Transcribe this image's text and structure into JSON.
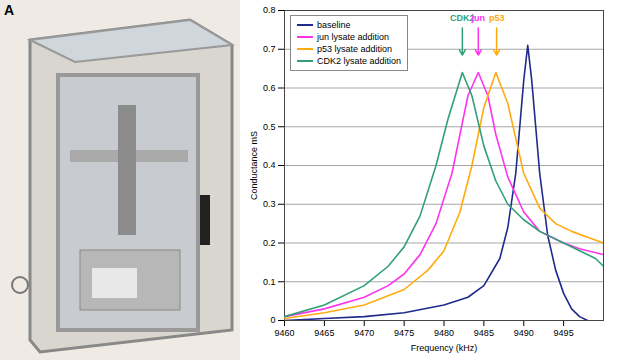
{
  "panel_label": "A",
  "chart_data": {
    "type": "line",
    "xlabel": "Frequency (kHz)",
    "ylabel": "Conductance mS",
    "xlim": [
      9460,
      9500
    ],
    "xticks": [
      9460,
      9465,
      9470,
      9475,
      9480,
      9485,
      9490,
      9495
    ],
    "ylim": [
      0,
      0.8
    ],
    "yticks": [
      0,
      0.1,
      0.2,
      0.3,
      0.4,
      0.5,
      0.6,
      0.7,
      0.8
    ],
    "grid": true,
    "legend": "top-left",
    "series": [
      {
        "name": "baseline",
        "color": "#1f2a8c",
        "x": [
          9460,
          9465,
          9470,
          9475,
          9480,
          9483,
          9485,
          9487,
          9488,
          9489,
          9490,
          9490.5,
          9491,
          9492,
          9493,
          9494,
          9495,
          9496,
          9497,
          9498
        ],
        "values": [
          0.0,
          0.005,
          0.01,
          0.02,
          0.04,
          0.06,
          0.09,
          0.16,
          0.24,
          0.38,
          0.62,
          0.71,
          0.62,
          0.38,
          0.22,
          0.13,
          0.07,
          0.03,
          0.01,
          0.0
        ]
      },
      {
        "name": "jun lysate addition",
        "color": "#ff33ee",
        "x": [
          9460,
          9465,
          9470,
          9473,
          9475,
          9477,
          9479,
          9481,
          9482,
          9483,
          9484.3,
          9485.5,
          9486.5,
          9488,
          9490,
          9492,
          9495,
          9497,
          9500
        ],
        "values": [
          0.01,
          0.03,
          0.06,
          0.09,
          0.12,
          0.17,
          0.25,
          0.38,
          0.48,
          0.58,
          0.64,
          0.58,
          0.48,
          0.37,
          0.28,
          0.23,
          0.2,
          0.185,
          0.17
        ]
      },
      {
        "name": "p53 lysate addition",
        "color": "#ffaa11",
        "x": [
          9460,
          9465,
          9470,
          9475,
          9478,
          9480,
          9482,
          9483.5,
          9485,
          9486.5,
          9488,
          9489,
          9490,
          9492,
          9494,
          9496,
          9498,
          9500
        ],
        "values": [
          0.005,
          0.02,
          0.04,
          0.08,
          0.13,
          0.18,
          0.28,
          0.4,
          0.55,
          0.64,
          0.56,
          0.47,
          0.38,
          0.29,
          0.25,
          0.23,
          0.215,
          0.2
        ]
      },
      {
        "name": "CDK2 lysate addition",
        "color": "#2fa07a",
        "x": [
          9460,
          9465,
          9470,
          9473,
          9475,
          9477,
          9479,
          9480.5,
          9482.3,
          9483.5,
          9485,
          9486.5,
          9488,
          9490,
          9492,
          9495,
          9497,
          9499,
          9500
        ],
        "values": [
          0.01,
          0.04,
          0.09,
          0.14,
          0.19,
          0.27,
          0.4,
          0.52,
          0.64,
          0.58,
          0.45,
          0.36,
          0.3,
          0.26,
          0.23,
          0.2,
          0.18,
          0.16,
          0.14
        ]
      }
    ],
    "annotations": [
      {
        "text": "CDK2",
        "x": 9482.3,
        "y": 0.77,
        "color": "#2fa07a"
      },
      {
        "text": "jun",
        "x": 9484.3,
        "y": 0.77,
        "color": "#ff33ee"
      },
      {
        "text": "p53",
        "x": 9486.6,
        "y": 0.77,
        "color": "#ffaa11"
      }
    ]
  }
}
